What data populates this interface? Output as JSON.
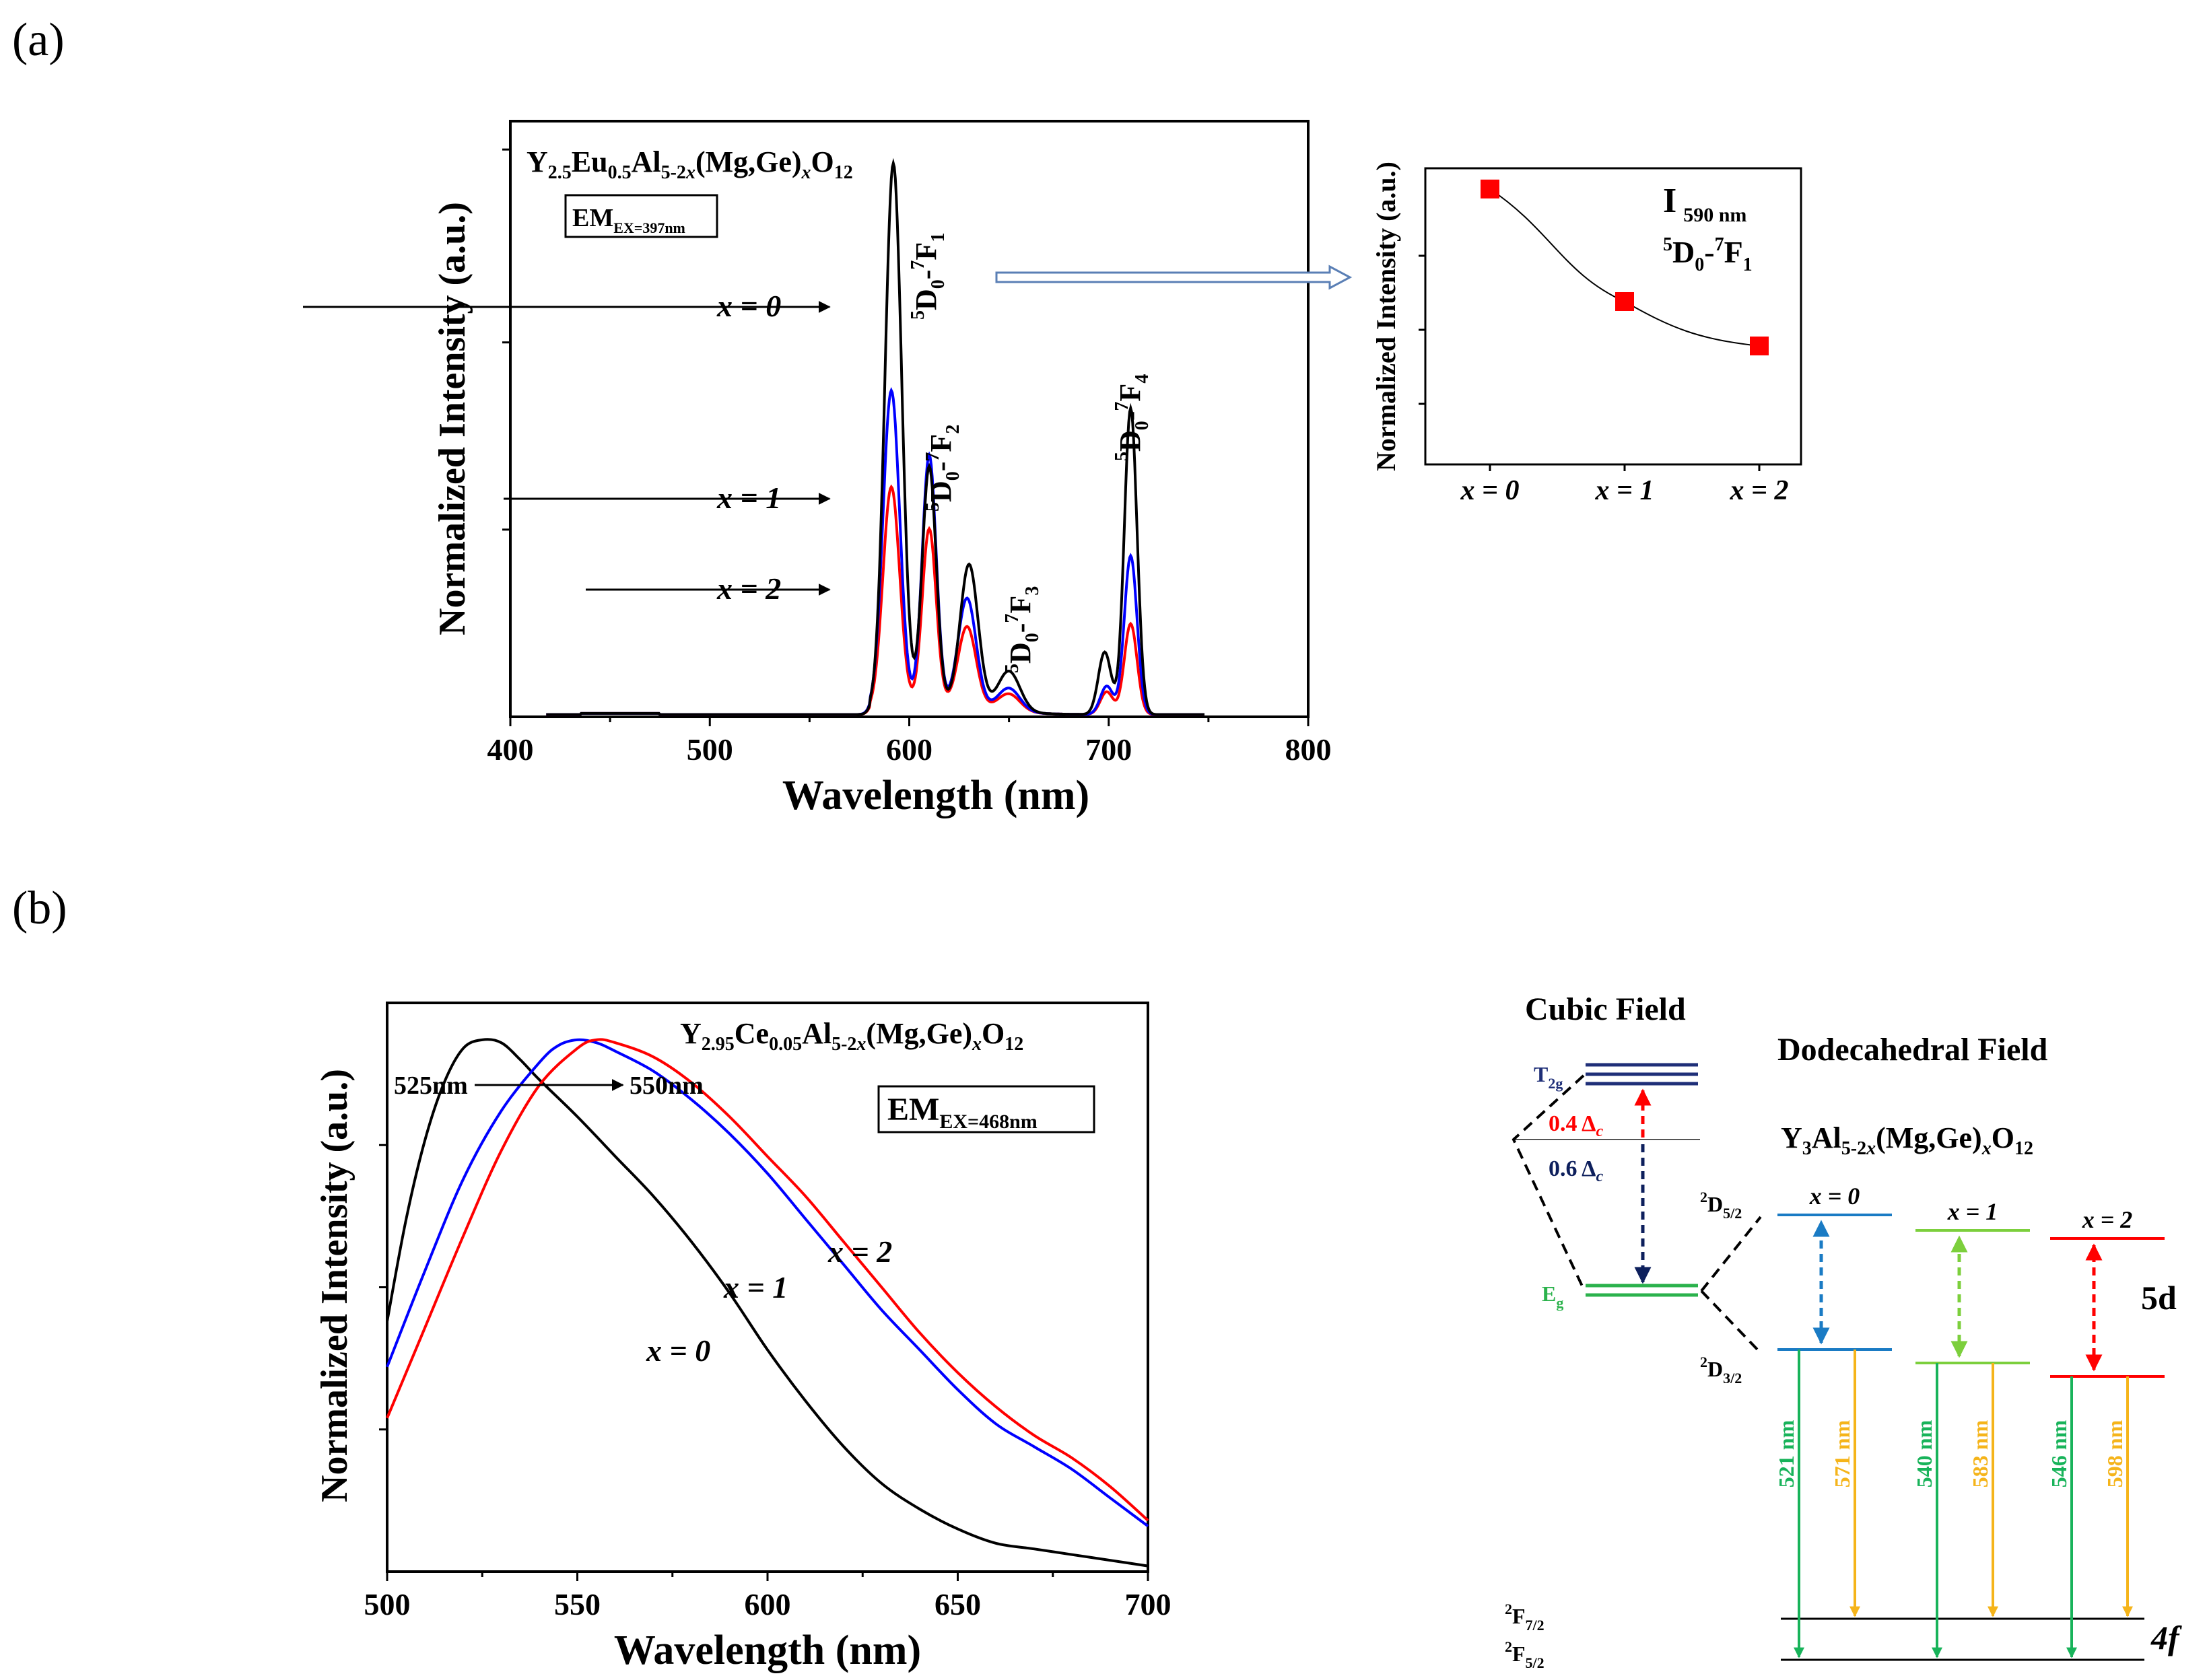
{
  "panels": {
    "a_label": "(a)",
    "b_label": "(b)"
  },
  "chart_a": {
    "type": "line",
    "title_base": "Y",
    "formula": [
      {
        "t": "Y"
      },
      {
        "t": "2.5",
        "sub": true
      },
      {
        "t": "Eu"
      },
      {
        "t": "0.5",
        "sub": true
      },
      {
        "t": "Al"
      },
      {
        "t": "5-2",
        "sub": true
      },
      {
        "t": "x",
        "sub": true,
        "italic": true
      },
      {
        "t": "(Mg,Ge)"
      },
      {
        "t": "x",
        "sub": true,
        "italic": true
      },
      {
        "t": "O"
      },
      {
        "t": "12",
        "sub": true
      }
    ],
    "em_box": {
      "main": "EM",
      "sub": "EX=397nm"
    },
    "xlabel": "Wavelength (nm)",
    "ylabel": "Normalized Intensity (a.u.)",
    "xlim": [
      400,
      800
    ],
    "ylim": [
      0,
      1.05
    ],
    "xticks": [
      "400",
      "500",
      "600",
      "700",
      "800"
    ],
    "series_labels": [
      "x = 0",
      "x = 1",
      "x = 2"
    ],
    "transitions": [
      "5D0-7F1",
      "5D0-7F2",
      "5D0-7F3",
      "5D0-7F4"
    ],
    "colors": {
      "x0": "#000000",
      "x1": "#0000ff",
      "x2": "#ff0000"
    },
    "peaks_x0": [
      [
        592,
        0.96,
        4.2
      ],
      [
        610,
        0.42,
        3.5
      ],
      [
        630,
        0.25,
        4.5
      ],
      [
        650,
        0.07,
        5.5
      ],
      [
        698,
        0.11,
        3.2
      ],
      [
        711,
        0.54,
        3.2
      ]
    ],
    "peaks_x1": [
      [
        591,
        0.56,
        4.2
      ],
      [
        610,
        0.44,
        3.5
      ],
      [
        629,
        0.19,
        4.5
      ],
      [
        650,
        0.04,
        5.5
      ],
      [
        699,
        0.05,
        3.2
      ],
      [
        711,
        0.28,
        3.2
      ]
    ],
    "peaks_x2": [
      [
        591,
        0.39,
        4.2
      ],
      [
        610,
        0.31,
        3.5
      ],
      [
        629,
        0.14,
        4.5
      ],
      [
        650,
        0.03,
        5.5
      ],
      [
        699,
        0.04,
        3.2
      ],
      [
        711,
        0.16,
        3.2
      ]
    ],
    "inset": {
      "categories": [
        "x = 0",
        "x = 1",
        "x = 2"
      ],
      "values": [
        0.93,
        0.55,
        0.4
      ],
      "ylabel": "Normalized Intensity (a.u.)",
      "label_main": "I",
      "label_sub": "590 nm",
      "transition": "5D0-7F1",
      "marker_color": "#ff0000"
    }
  },
  "chart_b": {
    "type": "line",
    "formula": [
      {
        "t": "Y"
      },
      {
        "t": "2.95",
        "sub": true
      },
      {
        "t": "Ce"
      },
      {
        "t": "0.05",
        "sub": true
      },
      {
        "t": "Al"
      },
      {
        "t": "5-2",
        "sub": true
      },
      {
        "t": "x",
        "sub": true,
        "italic": true
      },
      {
        "t": "(Mg,Ge)"
      },
      {
        "t": "x",
        "sub": true,
        "italic": true
      },
      {
        "t": "O"
      },
      {
        "t": "12",
        "sub": true
      }
    ],
    "em_box": {
      "main": "EM",
      "sub": "EX=468nm"
    },
    "xlabel": "Wavelength (nm)",
    "ylabel": "Normalized Intensity (a.u.)",
    "xlim": [
      500,
      700
    ],
    "ylim": [
      0,
      1.0
    ],
    "xticks": [
      "500",
      "550",
      "600",
      "650",
      "700"
    ],
    "peak_annotations": [
      "525nm",
      "550nm"
    ],
    "series_labels": [
      "x = 0",
      "x = 1",
      "x = 2"
    ],
    "colors": {
      "x0": "#000000",
      "x1": "#0000ff",
      "x2": "#ff0000"
    },
    "series": [
      {
        "name": "x = 0",
        "x": [
          500,
          505,
          510,
          515,
          520,
          525,
          530,
          535,
          540,
          550,
          560,
          570,
          580,
          590,
          600,
          610,
          620,
          630,
          640,
          650,
          660,
          670,
          680,
          690,
          700
        ],
        "y": [
          0.44,
          0.62,
          0.76,
          0.86,
          0.92,
          0.935,
          0.93,
          0.9,
          0.865,
          0.8,
          0.73,
          0.66,
          0.58,
          0.49,
          0.39,
          0.3,
          0.22,
          0.155,
          0.11,
          0.075,
          0.05,
          0.04,
          0.03,
          0.02,
          0.01
        ]
      },
      {
        "name": "x = 1",
        "x": [
          500,
          510,
          520,
          530,
          540,
          545,
          550,
          555,
          560,
          570,
          580,
          590,
          600,
          610,
          620,
          630,
          640,
          650,
          660,
          670,
          680,
          690,
          700
        ],
        "y": [
          0.36,
          0.53,
          0.69,
          0.81,
          0.895,
          0.925,
          0.935,
          0.93,
          0.915,
          0.88,
          0.83,
          0.77,
          0.7,
          0.62,
          0.54,
          0.46,
          0.39,
          0.32,
          0.26,
          0.22,
          0.18,
          0.13,
          0.08
        ]
      },
      {
        "name": "x = 2",
        "x": [
          500,
          510,
          520,
          530,
          540,
          550,
          555,
          560,
          570,
          580,
          590,
          600,
          610,
          620,
          630,
          640,
          650,
          660,
          670,
          680,
          690,
          700
        ],
        "y": [
          0.27,
          0.43,
          0.59,
          0.74,
          0.855,
          0.92,
          0.935,
          0.93,
          0.905,
          0.86,
          0.8,
          0.73,
          0.66,
          0.58,
          0.5,
          0.42,
          0.35,
          0.29,
          0.24,
          0.2,
          0.15,
          0.09
        ]
      }
    ]
  },
  "diagram": {
    "cubic_field": "Cubic Field",
    "dodecahedral_field": "Dodecahedral Field",
    "formula": [
      {
        "t": "Y"
      },
      {
        "t": "3",
        "sub": true
      },
      {
        "t": "Al"
      },
      {
        "t": "5-2",
        "sub": true
      },
      {
        "t": "x",
        "sub": true,
        "italic": true
      },
      {
        "t": "(Mg,Ge)"
      },
      {
        "t": "x",
        "sub": true,
        "italic": true
      },
      {
        "t": "O"
      },
      {
        "t": "12",
        "sub": true
      }
    ],
    "t2g": {
      "main": "T",
      "sub": "2g"
    },
    "eg": {
      "main": "E",
      "sub": "g"
    },
    "delta_04": "0.4 Δ",
    "delta_06": "0.6 Δ",
    "delta_sub": "c",
    "d52": {
      "sup": "2",
      "main": "D",
      "sub": "5/2"
    },
    "d32": {
      "sup": "2",
      "main": "D",
      "sub": "3/2"
    },
    "f72": {
      "sup": "2",
      "main": "F",
      "sub": "7/2"
    },
    "f52": {
      "sup": "2",
      "main": "F",
      "sub": "5/2"
    },
    "columns": [
      {
        "label": "x = 0",
        "color": "#1a7bc4",
        "green": "521 nm",
        "orange": "571 nm"
      },
      {
        "label": "x = 1",
        "color": "#7ccf3c",
        "green": "540 nm",
        "orange": "583 nm"
      },
      {
        "label": "x = 2",
        "color": "#ff0000",
        "green": "546 nm",
        "orange": "598 nm"
      }
    ],
    "level_5d": "5d",
    "level_4f": "4f",
    "colors": {
      "t2g": "#1f2f78",
      "eg": "#2bb24c",
      "emit_green": "#18b35a",
      "emit_orange": "#f5b41a",
      "red": "#ff0000",
      "navy": "#0d1f5c"
    }
  }
}
